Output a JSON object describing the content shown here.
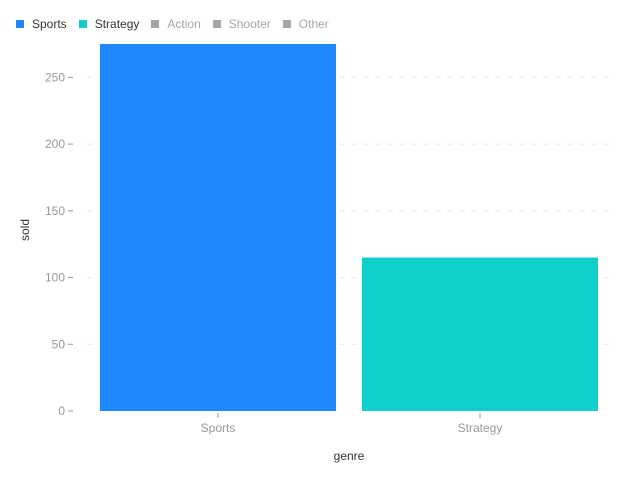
{
  "chart_data": {
    "type": "bar",
    "xlabel": "genre",
    "ylabel": "sold",
    "categories": [
      "Sports",
      "Strategy"
    ],
    "values": [
      275,
      115
    ],
    "colors": [
      "#1f88ff",
      "#0ecfca"
    ],
    "ylim": [
      0,
      275
    ],
    "yticks": [
      0,
      50,
      100,
      150,
      200,
      250
    ],
    "grid": "horizontal dashed",
    "legend_position": "top-left",
    "legend": [
      {
        "label": "Sports",
        "color": "#1f88ff",
        "active": true
      },
      {
        "label": "Strategy",
        "color": "#0ecfca",
        "active": true
      },
      {
        "label": "Action",
        "color": "#a6a6a6",
        "active": false
      },
      {
        "label": "Shooter",
        "color": "#a6a6a6",
        "active": false
      },
      {
        "label": "Other",
        "color": "#a6a6a6",
        "active": false
      }
    ]
  }
}
